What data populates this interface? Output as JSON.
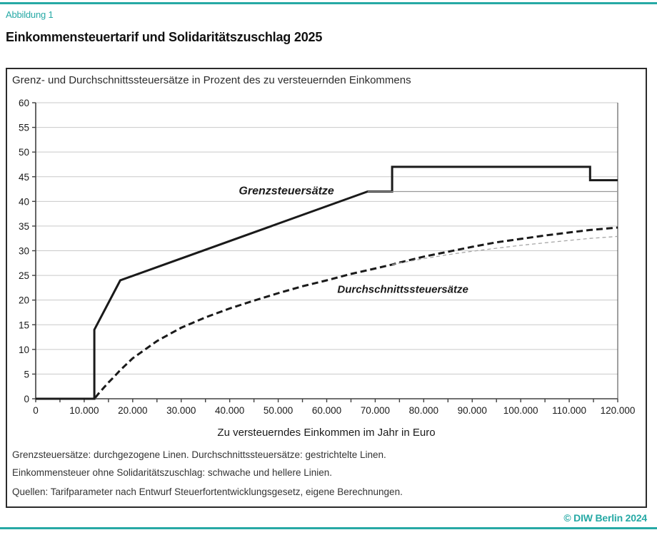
{
  "page": {
    "figure_label": "Abbildung 1",
    "title": "Einkommensteuertarif und Solidaritätszuschlag 2025",
    "copyright": "© DIW Berlin 2024"
  },
  "colors": {
    "accent_teal": "#26a9a5",
    "line_black": "#1a1a1a",
    "line_gray": "#999999",
    "grid_gray": "#c9c9c9",
    "axis_dark": "#404040"
  },
  "notes": [
    "Grenzsteuersätze: durchgezogene Linen. Durchschnittssteuersätze: gestrichtelte Linen.",
    "Einkommensteuer ohne Solidaritätszuschlag: schwache und hellere Linien.",
    "Quellen: Tarifparameter nach Entwurf Steuerfortentwicklungsgesetz, eigene Berechnungen."
  ],
  "chart_data": {
    "type": "line",
    "title": "Grenz- und Durchschnittssteuersätze in Prozent des zu versteuernden Einkommens",
    "xlabel": "Zu versteuerndes Einkommen im Jahr in Euro",
    "ylabel": "",
    "xlim": [
      0,
      120000
    ],
    "ylim": [
      0,
      60
    ],
    "grid": "horizontal",
    "legend_position": "none",
    "x_ticks": [
      0,
      10000,
      20000,
      30000,
      40000,
      50000,
      60000,
      70000,
      80000,
      90000,
      100000,
      110000,
      120000
    ],
    "x_tick_labels": [
      "0",
      "10.000",
      "20.000",
      "30.000",
      "40.000",
      "50.000",
      "60.000",
      "70.000",
      "80.000",
      "90.000",
      "100.000",
      "110.000",
      "120.000"
    ],
    "x_minor_tick_step": 5000,
    "y_ticks": [
      0,
      5,
      10,
      15,
      20,
      25,
      30,
      35,
      40,
      45,
      50,
      55,
      60
    ],
    "y_tick_labels": [
      "0",
      "5",
      "10",
      "15",
      "20",
      "25",
      "30",
      "35",
      "40",
      "45",
      "50",
      "55",
      "60"
    ],
    "annotations": [
      {
        "text": "Grenzsteuersätze",
        "x": 51700,
        "y": 41.4,
        "size": 16,
        "weight": "bold",
        "style": "italic",
        "anchor": "middle"
      },
      {
        "text": "Durchschnittssteuersätze",
        "x": 75700,
        "y": 21.5,
        "size": 15,
        "weight": "bold",
        "style": "italic",
        "anchor": "middle"
      }
    ],
    "series": [
      {
        "name": "Grenzsteuersatz inkl. Solidaritätszuschlag",
        "line": "solid",
        "emphasis": "bold",
        "color": "#1a1a1a",
        "width": 3,
        "dash": "",
        "points": [
          [
            0,
            0
          ],
          [
            12084,
            0
          ],
          [
            12084,
            14
          ],
          [
            17430,
            24
          ],
          [
            68430,
            42
          ],
          [
            73480,
            42
          ],
          [
            73480,
            47
          ],
          [
            114300,
            47
          ],
          [
            114300,
            44.3
          ],
          [
            120000,
            44.3
          ]
        ]
      },
      {
        "name": "Grenzsteuersatz ohne Solidaritätszuschlag",
        "line": "solid",
        "emphasis": "thin",
        "color": "#999999",
        "width": 1.3,
        "dash": "",
        "points": [
          [
            68430,
            42
          ],
          [
            120000,
            42
          ]
        ]
      },
      {
        "name": "Durchschnittssteuersatz inkl. Solidaritätszuschlag",
        "line": "dashed",
        "emphasis": "bold",
        "color": "#1a1a1a",
        "width": 3,
        "dash": "9 5",
        "points": [
          [
            0,
            0
          ],
          [
            12084,
            0
          ],
          [
            13000,
            1.1
          ],
          [
            14000,
            2.2
          ],
          [
            15000,
            3.3
          ],
          [
            16000,
            4.3
          ],
          [
            17430,
            5.8
          ],
          [
            20000,
            8.2
          ],
          [
            25000,
            11.7
          ],
          [
            30000,
            14.4
          ],
          [
            35000,
            16.5
          ],
          [
            40000,
            18.3
          ],
          [
            45000,
            19.9
          ],
          [
            50000,
            21.4
          ],
          [
            55000,
            22.8
          ],
          [
            60000,
            24.0
          ],
          [
            65000,
            25.3
          ],
          [
            70000,
            26.4
          ],
          [
            73480,
            27.2
          ],
          [
            75000,
            27.6
          ],
          [
            80000,
            28.8
          ],
          [
            85000,
            29.8
          ],
          [
            90000,
            30.8
          ],
          [
            95000,
            31.7
          ],
          [
            100000,
            32.4
          ],
          [
            105000,
            33.1
          ],
          [
            110000,
            33.7
          ],
          [
            114300,
            34.2
          ],
          [
            120000,
            34.7
          ]
        ]
      },
      {
        "name": "Durchschnittssteuersatz ohne Solidaritätszuschlag",
        "line": "dashed",
        "emphasis": "thin",
        "color": "#a6a6a6",
        "width": 1.3,
        "dash": "5 4",
        "points": [
          [
            73480,
            27.2
          ],
          [
            75000,
            27.5
          ],
          [
            80000,
            28.4
          ],
          [
            85000,
            29.2
          ],
          [
            90000,
            29.9
          ],
          [
            95000,
            30.5
          ],
          [
            100000,
            31.1
          ],
          [
            105000,
            31.6
          ],
          [
            110000,
            32.1
          ],
          [
            114300,
            32.5
          ],
          [
            120000,
            32.9
          ]
        ]
      }
    ]
  }
}
